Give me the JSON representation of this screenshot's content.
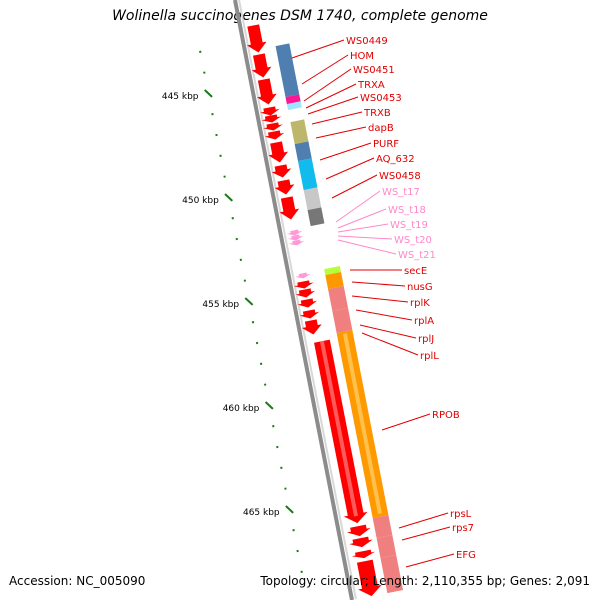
{
  "title": "Wolinella succinogenes DSM 1740, complete genome",
  "footer": {
    "accession": "Accession: NC_005090",
    "topology": "Topology: circular; Length: 2,110,355 bp; Genes: 2,091"
  },
  "colors": {
    "backbone": "#8c8c8c",
    "tick": "#1a7a1a",
    "gene_red": "#ff0000",
    "label_red": "#e00000",
    "label_pink": "#ff88c8",
    "rna_pink": "#ff9ad6",
    "steelblue": "#4f7fb0",
    "orange": "#ff9900",
    "salmon": "#f08080",
    "cyan": "#11bbee",
    "magenta": "#ff1493",
    "olive": "#bdb76b",
    "grey_light": "#c8c8c8",
    "grey_dark": "#777777",
    "lime": "#b7ff3c"
  },
  "chart_data": {
    "type": "genome-map",
    "kbp_labels": [
      {
        "kbp": 445,
        "text": "445 kbp"
      },
      {
        "kbp": 450,
        "text": "450 kbp"
      },
      {
        "kbp": 455,
        "text": "455 kbp"
      },
      {
        "kbp": 460,
        "text": "460 kbp"
      },
      {
        "kbp": 465,
        "text": "465 kbp"
      }
    ],
    "gene_labels": [
      {
        "text": "WS0449",
        "style": "red"
      },
      {
        "text": "HOM",
        "style": "red"
      },
      {
        "text": "WS0451",
        "style": "red"
      },
      {
        "text": "TRXA",
        "style": "red"
      },
      {
        "text": "WS0453",
        "style": "red"
      },
      {
        "text": "TRXB",
        "style": "red"
      },
      {
        "text": "dapB",
        "style": "red"
      },
      {
        "text": "PURF",
        "style": "red"
      },
      {
        "text": "AQ_632",
        "style": "red"
      },
      {
        "text": "WS0458",
        "style": "red"
      },
      {
        "text": "WS_t17",
        "style": "pink"
      },
      {
        "text": "WS_t18",
        "style": "pink"
      },
      {
        "text": "WS_t19",
        "style": "pink"
      },
      {
        "text": "WS_t20",
        "style": "pink"
      },
      {
        "text": "WS_t21",
        "style": "pink"
      },
      {
        "text": "secE",
        "style": "red"
      },
      {
        "text": "nusG",
        "style": "red"
      },
      {
        "text": "rplK",
        "style": "red"
      },
      {
        "text": "rplA",
        "style": "red"
      },
      {
        "text": "rplJ",
        "style": "red"
      },
      {
        "text": "rplL",
        "style": "red"
      },
      {
        "text": "RPOB",
        "style": "red"
      },
      {
        "text": "rpsL",
        "style": "red"
      },
      {
        "text": "rps7",
        "style": "red"
      },
      {
        "text": "EFG",
        "style": "red"
      }
    ]
  }
}
